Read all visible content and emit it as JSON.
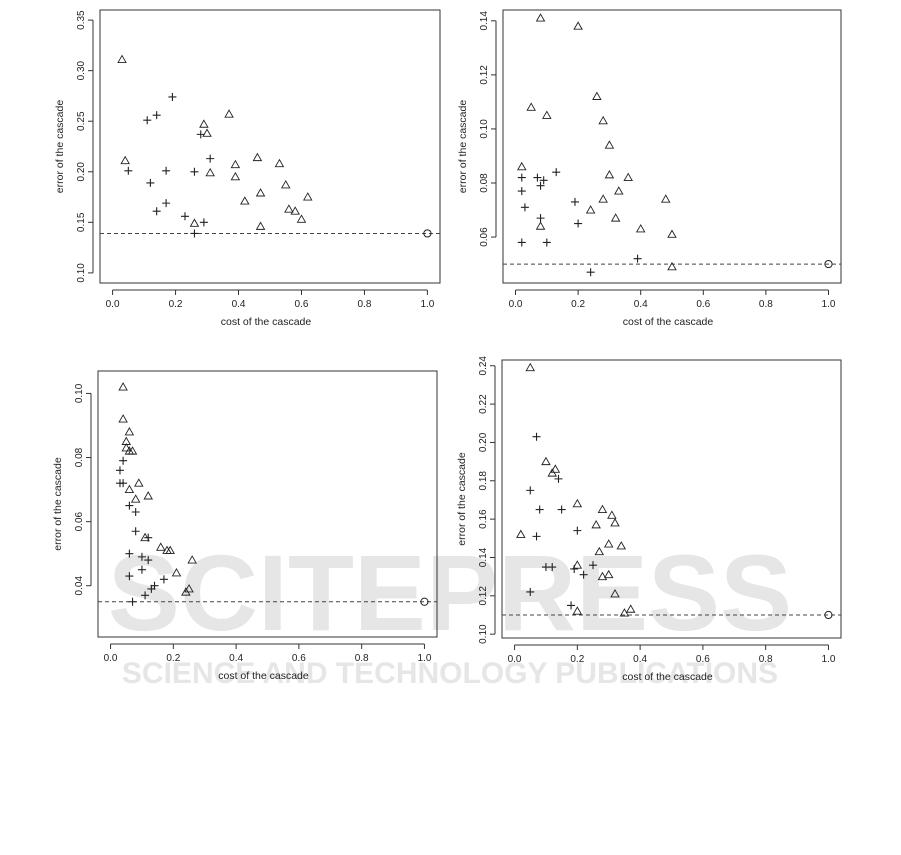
{
  "watermark": {
    "main_text": "SCITEPRESS",
    "sub_text": "SCIENCE AND TECHNOLOGY PUBLICATIONS"
  },
  "chart_data": [
    {
      "type": "scatter",
      "xlabel": "cost of the cascade",
      "ylabel": "error of the cascade",
      "xlim": [
        -0.04,
        1.04
      ],
      "ylim": [
        0.09,
        0.36
      ],
      "xticks": [
        0.0,
        0.2,
        0.4,
        0.6,
        0.8,
        1.0
      ],
      "yticks": [
        0.1,
        0.15,
        0.2,
        0.25,
        0.3,
        0.35
      ],
      "tick_labels_x": [
        "0.0",
        "0.2",
        "0.4",
        "0.6",
        "0.8",
        "1.0"
      ],
      "tick_labels_y": [
        "0.10",
        "0.15",
        "0.20",
        "0.25",
        "0.30",
        "0.35"
      ],
      "reference_line": 0.139,
      "series": [
        {
          "marker": "triangle",
          "points": [
            [
              0.03,
              0.311
            ],
            [
              0.04,
              0.211
            ],
            [
              0.29,
              0.247
            ],
            [
              0.3,
              0.238
            ],
            [
              0.37,
              0.257
            ],
            [
              0.39,
              0.207
            ],
            [
              0.39,
              0.195
            ],
            [
              0.46,
              0.214
            ],
            [
              0.53,
              0.208
            ],
            [
              0.55,
              0.187
            ],
            [
              0.47,
              0.179
            ],
            [
              0.42,
              0.171
            ],
            [
              0.62,
              0.175
            ],
            [
              0.56,
              0.163
            ],
            [
              0.58,
              0.161
            ],
            [
              0.6,
              0.153
            ],
            [
              0.31,
              0.199
            ],
            [
              0.47,
              0.146
            ],
            [
              0.26,
              0.149
            ]
          ]
        },
        {
          "marker": "plus",
          "points": [
            [
              0.11,
              0.251
            ],
            [
              0.14,
              0.256
            ],
            [
              0.19,
              0.274
            ],
            [
              0.05,
              0.201
            ],
            [
              0.28,
              0.237
            ],
            [
              0.17,
              0.201
            ],
            [
              0.31,
              0.213
            ],
            [
              0.26,
              0.2
            ],
            [
              0.12,
              0.189
            ],
            [
              0.14,
              0.161
            ],
            [
              0.17,
              0.169
            ],
            [
              0.23,
              0.156
            ],
            [
              0.29,
              0.15
            ],
            [
              0.26,
              0.139
            ]
          ]
        },
        {
          "marker": "circle",
          "points": [
            [
              1.0,
              0.139
            ]
          ]
        }
      ]
    },
    {
      "type": "scatter",
      "xlabel": "cost of the cascade",
      "ylabel": "error of the cascade",
      "xlim": [
        -0.04,
        1.04
      ],
      "ylim": [
        0.043,
        0.144
      ],
      "xticks": [
        0.0,
        0.2,
        0.4,
        0.6,
        0.8,
        1.0
      ],
      "yticks": [
        0.06,
        0.08,
        0.1,
        0.12,
        0.14
      ],
      "tick_labels_x": [
        "0.0",
        "0.2",
        "0.4",
        "0.6",
        "0.8",
        "1.0"
      ],
      "tick_labels_y": [
        "0.06",
        "0.08",
        "0.10",
        "0.12",
        "0.14"
      ],
      "reference_line": 0.05,
      "series": [
        {
          "marker": "triangle",
          "points": [
            [
              0.08,
              0.141
            ],
            [
              0.2,
              0.138
            ],
            [
              0.26,
              0.112
            ],
            [
              0.05,
              0.108
            ],
            [
              0.1,
              0.105
            ],
            [
              0.28,
              0.103
            ],
            [
              0.3,
              0.094
            ],
            [
              0.02,
              0.086
            ],
            [
              0.3,
              0.083
            ],
            [
              0.36,
              0.082
            ],
            [
              0.33,
              0.077
            ],
            [
              0.28,
              0.074
            ],
            [
              0.24,
              0.07
            ],
            [
              0.32,
              0.067
            ],
            [
              0.48,
              0.074
            ],
            [
              0.08,
              0.064
            ],
            [
              0.4,
              0.063
            ],
            [
              0.5,
              0.061
            ],
            [
              0.5,
              0.049
            ]
          ]
        },
        {
          "marker": "plus",
          "points": [
            [
              0.02,
              0.082
            ],
            [
              0.07,
              0.082
            ],
            [
              0.09,
              0.081
            ],
            [
              0.13,
              0.084
            ],
            [
              0.02,
              0.077
            ],
            [
              0.08,
              0.079
            ],
            [
              0.19,
              0.073
            ],
            [
              0.03,
              0.071
            ],
            [
              0.08,
              0.067
            ],
            [
              0.2,
              0.065
            ],
            [
              0.02,
              0.058
            ],
            [
              0.1,
              0.058
            ],
            [
              0.39,
              0.052
            ],
            [
              0.24,
              0.047
            ]
          ]
        },
        {
          "marker": "circle",
          "points": [
            [
              1.0,
              0.05
            ]
          ]
        }
      ]
    },
    {
      "type": "scatter",
      "xlabel": "cost of the cascade",
      "ylabel": "error of the cascade",
      "xlim": [
        -0.04,
        1.04
      ],
      "ylim": [
        0.024,
        0.107
      ],
      "xticks": [
        0.0,
        0.2,
        0.4,
        0.6,
        0.8,
        1.0
      ],
      "yticks": [
        0.04,
        0.06,
        0.08,
        0.1
      ],
      "tick_labels_x": [
        "0.0",
        "0.2",
        "0.4",
        "0.6",
        "0.8",
        "1.0"
      ],
      "tick_labels_y": [
        "0.04",
        "0.06",
        "0.08",
        "0.10"
      ],
      "reference_line": 0.035,
      "series": [
        {
          "marker": "triangle",
          "points": [
            [
              0.04,
              0.102
            ],
            [
              0.04,
              0.092
            ],
            [
              0.06,
              0.088
            ],
            [
              0.05,
              0.085
            ],
            [
              0.05,
              0.083
            ],
            [
              0.06,
              0.082
            ],
            [
              0.07,
              0.082
            ],
            [
              0.09,
              0.072
            ],
            [
              0.06,
              0.07
            ],
            [
              0.08,
              0.067
            ],
            [
              0.12,
              0.068
            ],
            [
              0.11,
              0.055
            ],
            [
              0.16,
              0.052
            ],
            [
              0.18,
              0.051
            ],
            [
              0.19,
              0.051
            ],
            [
              0.26,
              0.048
            ],
            [
              0.21,
              0.044
            ],
            [
              0.25,
              0.039
            ],
            [
              0.24,
              0.038
            ]
          ]
        },
        {
          "marker": "plus",
          "points": [
            [
              0.04,
              0.079
            ],
            [
              0.03,
              0.076
            ],
            [
              0.03,
              0.072
            ],
            [
              0.04,
              0.072
            ],
            [
              0.06,
              0.065
            ],
            [
              0.08,
              0.063
            ],
            [
              0.08,
              0.057
            ],
            [
              0.12,
              0.055
            ],
            [
              0.1,
              0.049
            ],
            [
              0.12,
              0.048
            ],
            [
              0.06,
              0.05
            ],
            [
              0.1,
              0.045
            ],
            [
              0.06,
              0.043
            ],
            [
              0.17,
              0.042
            ],
            [
              0.14,
              0.04
            ],
            [
              0.13,
              0.039
            ],
            [
              0.11,
              0.037
            ],
            [
              0.07,
              0.035
            ]
          ]
        },
        {
          "marker": "circle",
          "points": [
            [
              1.0,
              0.035
            ]
          ]
        }
      ]
    },
    {
      "type": "scatter",
      "xlabel": "cost of the cascade",
      "ylabel": "error of the cascade",
      "xlim": [
        -0.04,
        1.04
      ],
      "ylim": [
        0.098,
        0.243
      ],
      "xticks": [
        0.0,
        0.2,
        0.4,
        0.6,
        0.8,
        1.0
      ],
      "yticks": [
        0.1,
        0.12,
        0.14,
        0.16,
        0.18,
        0.2,
        0.22,
        0.24
      ],
      "tick_labels_x": [
        "0.0",
        "0.2",
        "0.4",
        "0.6",
        "0.8",
        "1.0"
      ],
      "tick_labels_y": [
        "0.10",
        "0.12",
        "0.14",
        "0.16",
        "0.18",
        "0.20",
        "0.22",
        "0.24"
      ],
      "reference_line": 0.11,
      "series": [
        {
          "marker": "triangle",
          "points": [
            [
              0.05,
              0.239
            ],
            [
              0.1,
              0.19
            ],
            [
              0.13,
              0.186
            ],
            [
              0.12,
              0.184
            ],
            [
              0.2,
              0.168
            ],
            [
              0.28,
              0.165
            ],
            [
              0.31,
              0.162
            ],
            [
              0.32,
              0.158
            ],
            [
              0.26,
              0.157
            ],
            [
              0.3,
              0.147
            ],
            [
              0.34,
              0.146
            ],
            [
              0.27,
              0.143
            ],
            [
              0.02,
              0.152
            ],
            [
              0.28,
              0.13
            ],
            [
              0.3,
              0.131
            ],
            [
              0.2,
              0.136
            ],
            [
              0.32,
              0.121
            ],
            [
              0.37,
              0.113
            ],
            [
              0.35,
              0.111
            ],
            [
              0.2,
              0.112
            ]
          ]
        },
        {
          "marker": "plus",
          "points": [
            [
              0.07,
              0.203
            ],
            [
              0.05,
              0.175
            ],
            [
              0.14,
              0.181
            ],
            [
              0.08,
              0.165
            ],
            [
              0.15,
              0.165
            ],
            [
              0.07,
              0.151
            ],
            [
              0.2,
              0.154
            ],
            [
              0.1,
              0.135
            ],
            [
              0.12,
              0.135
            ],
            [
              0.19,
              0.134
            ],
            [
              0.25,
              0.136
            ],
            [
              0.22,
              0.131
            ],
            [
              0.05,
              0.122
            ],
            [
              0.18,
              0.115
            ]
          ]
        },
        {
          "marker": "circle",
          "points": [
            [
              1.0,
              0.11
            ]
          ]
        }
      ]
    }
  ]
}
